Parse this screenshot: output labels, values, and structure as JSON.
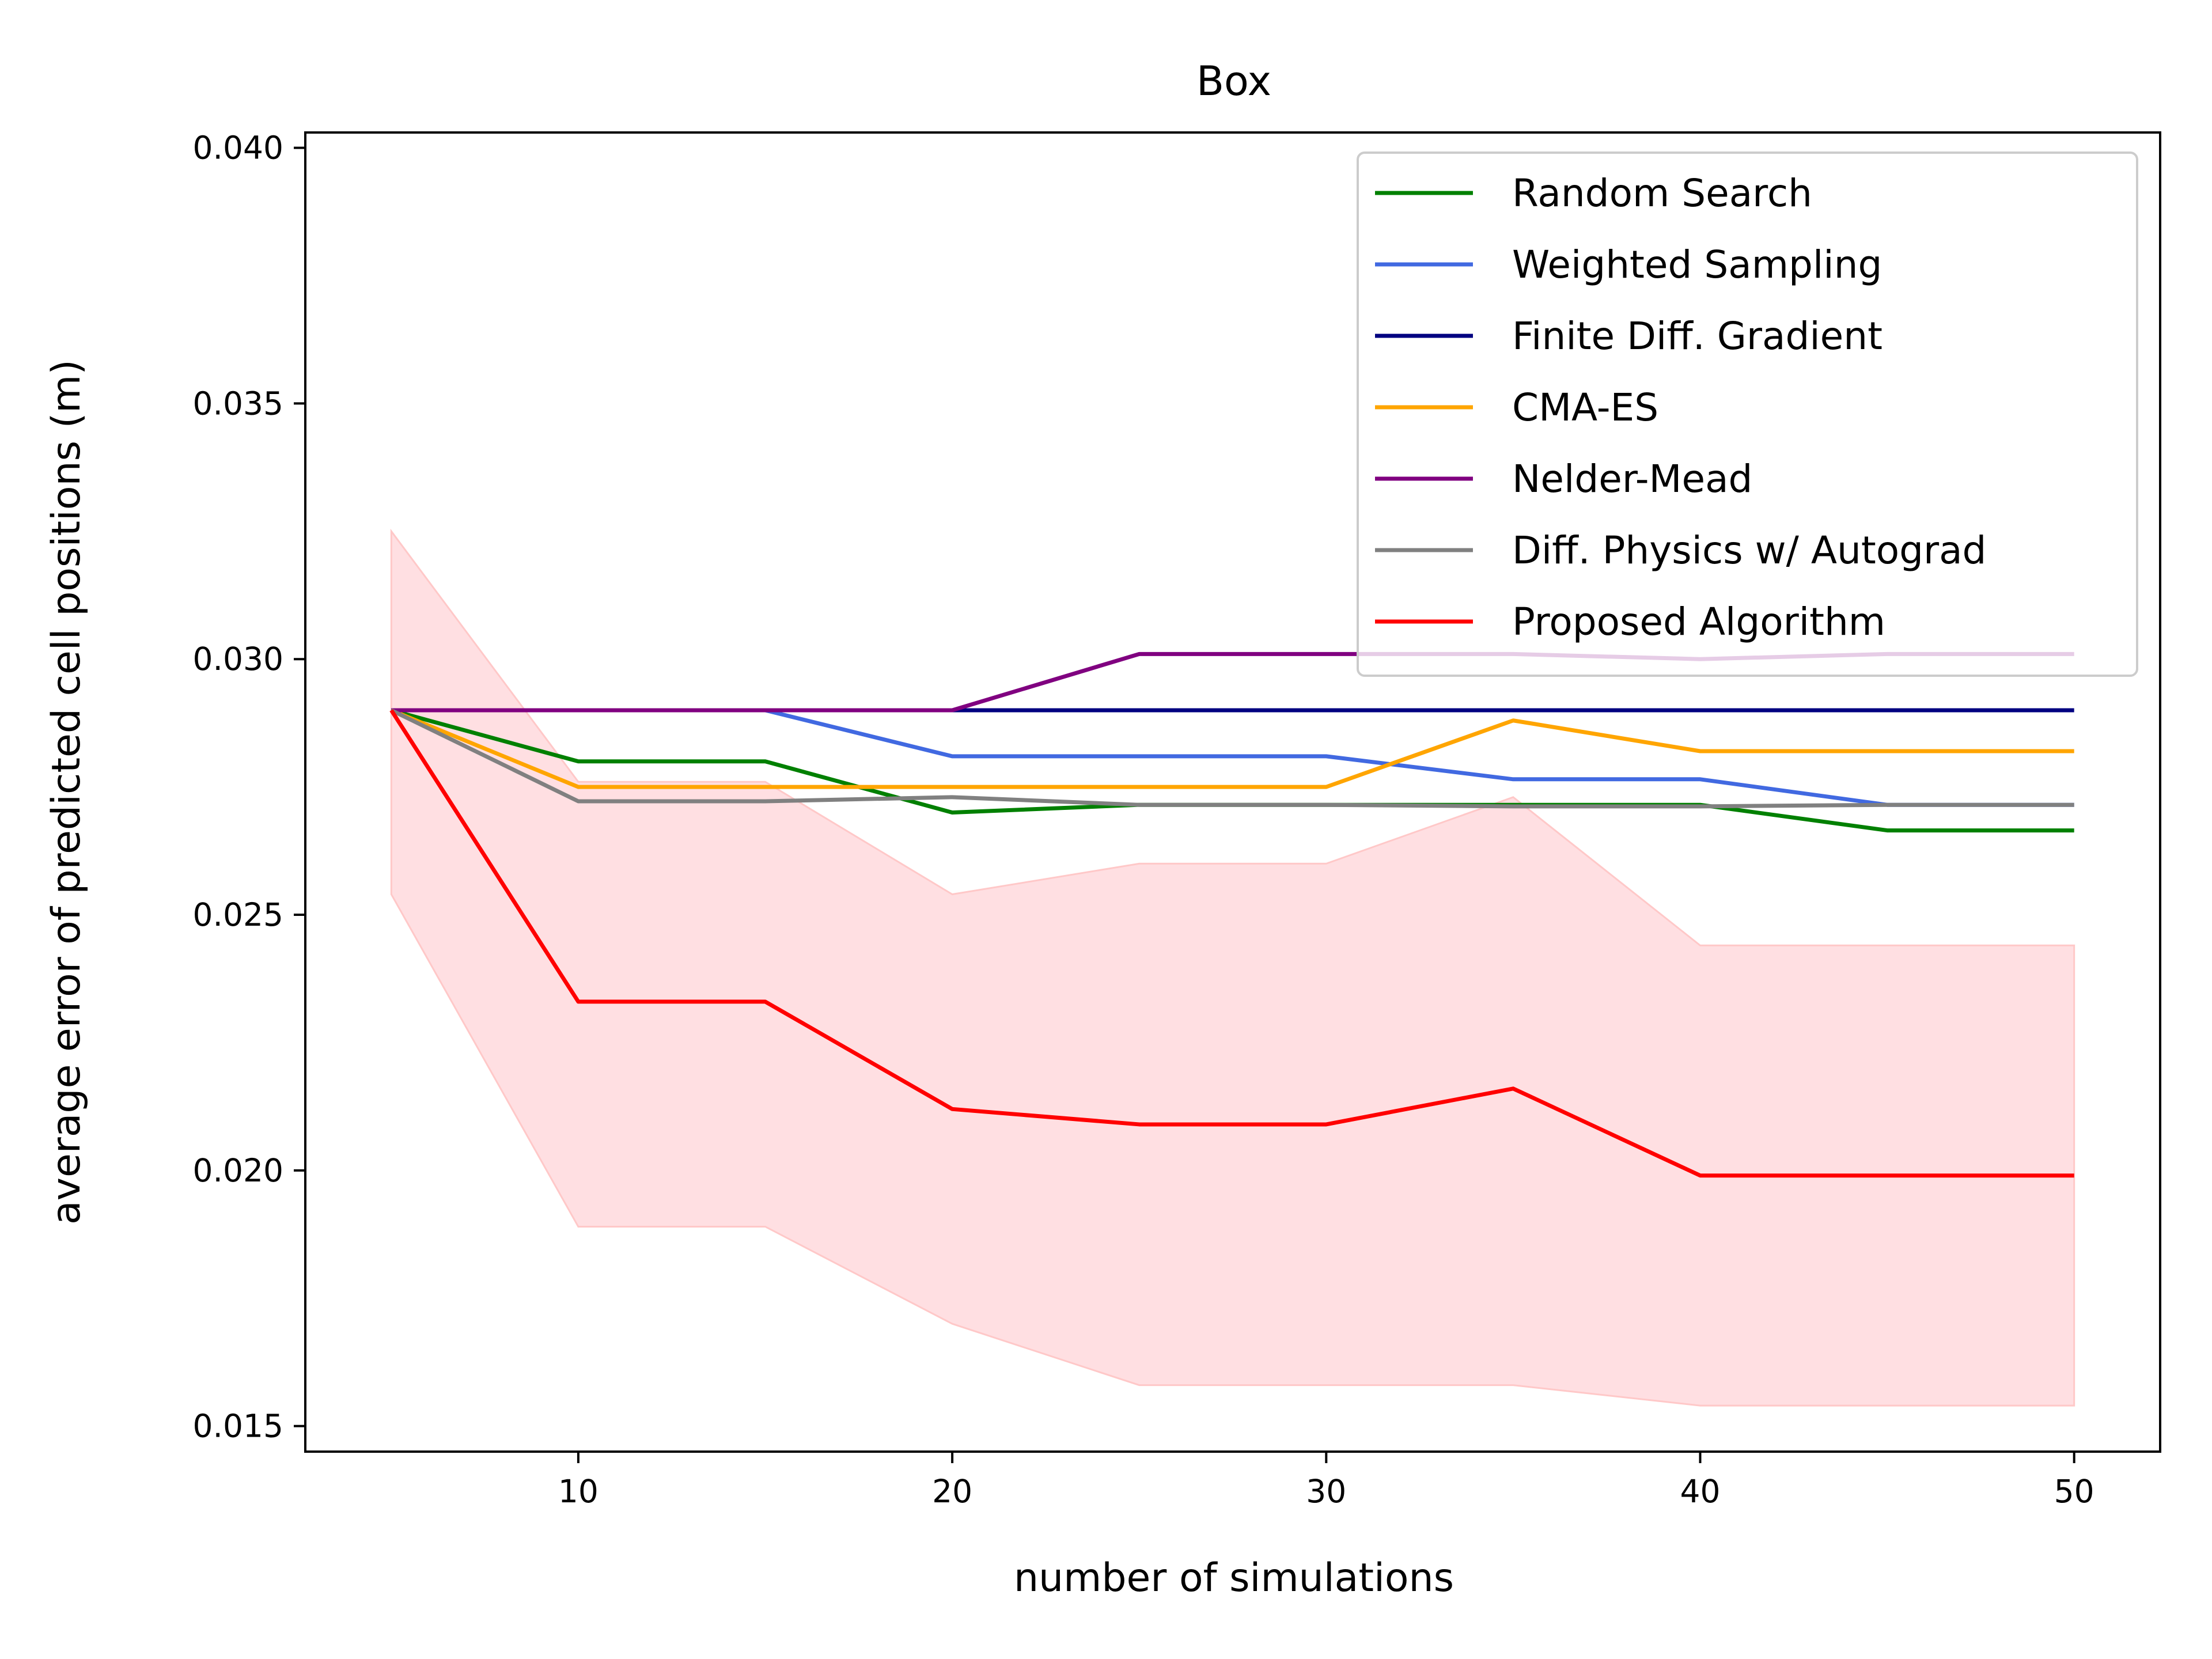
{
  "chart_data": {
    "type": "line",
    "title": "Box",
    "xlabel": "number of simulations",
    "ylabel": "average error of predicted cell positions (m)",
    "xlim": [
      2.7,
      52.3
    ],
    "ylim": [
      0.0145,
      0.0403
    ],
    "xticks": [
      10,
      20,
      30,
      40,
      50
    ],
    "xtick_labels": [
      "10",
      "20",
      "30",
      "40",
      "50"
    ],
    "yticks": [
      0.015,
      0.02,
      0.025,
      0.03,
      0.035,
      0.04
    ],
    "ytick_labels": [
      "0.015",
      "0.020",
      "0.025",
      "0.030",
      "0.035",
      "0.040"
    ],
    "grid": false,
    "legend_position": "upper-right",
    "x": [
      5,
      10,
      15,
      20,
      25,
      30,
      35,
      40,
      45,
      50
    ],
    "series": [
      {
        "name": "Random Search",
        "color": "#008000",
        "values": [
          0.029,
          0.028,
          0.028,
          0.027,
          0.02715,
          0.02715,
          0.02715,
          0.02715,
          0.02665,
          0.02665
        ]
      },
      {
        "name": "Weighted Sampling",
        "color": "#4169e1",
        "values": [
          0.029,
          0.029,
          0.029,
          0.0281,
          0.0281,
          0.0281,
          0.02765,
          0.02765,
          0.02715,
          0.02715
        ]
      },
      {
        "name": "Finite Diff. Gradient",
        "color": "#000080",
        "values": [
          0.029,
          0.029,
          0.029,
          0.029,
          0.029,
          0.029,
          0.029,
          0.029,
          0.029,
          0.029
        ]
      },
      {
        "name": "CMA-ES",
        "color": "#ffa500",
        "values": [
          0.029,
          0.0275,
          0.0275,
          0.0275,
          0.0275,
          0.0275,
          0.0288,
          0.0282,
          0.0282,
          0.0282
        ]
      },
      {
        "name": "Nelder-Mead",
        "color": "#800080",
        "values": [
          0.029,
          0.029,
          0.029,
          0.029,
          0.0301,
          0.0301,
          0.0301,
          0.03,
          0.0301,
          0.0301
        ]
      },
      {
        "name": "Diff. Physics w/ Autograd",
        "color": "#808080",
        "values": [
          0.029,
          0.02722,
          0.02722,
          0.0273,
          0.02715,
          0.02715,
          0.02712,
          0.02712,
          0.02715,
          0.02715
        ]
      },
      {
        "name": "Proposed Algorithm",
        "color": "#ff0000",
        "values": [
          0.029,
          0.0233,
          0.0233,
          0.0212,
          0.0209,
          0.0209,
          0.0216,
          0.0199,
          0.0199,
          0.0199
        ],
        "band_upper": [
          0.0325,
          0.0276,
          0.0276,
          0.0254,
          0.026,
          0.026,
          0.0273,
          0.0244,
          0.0244,
          0.0244
        ],
        "band_lower": [
          0.0254,
          0.0189,
          0.0189,
          0.017,
          0.0158,
          0.0158,
          0.0158,
          0.0154,
          0.0154,
          0.0154
        ],
        "band_color": "#ffdfe2"
      }
    ]
  }
}
